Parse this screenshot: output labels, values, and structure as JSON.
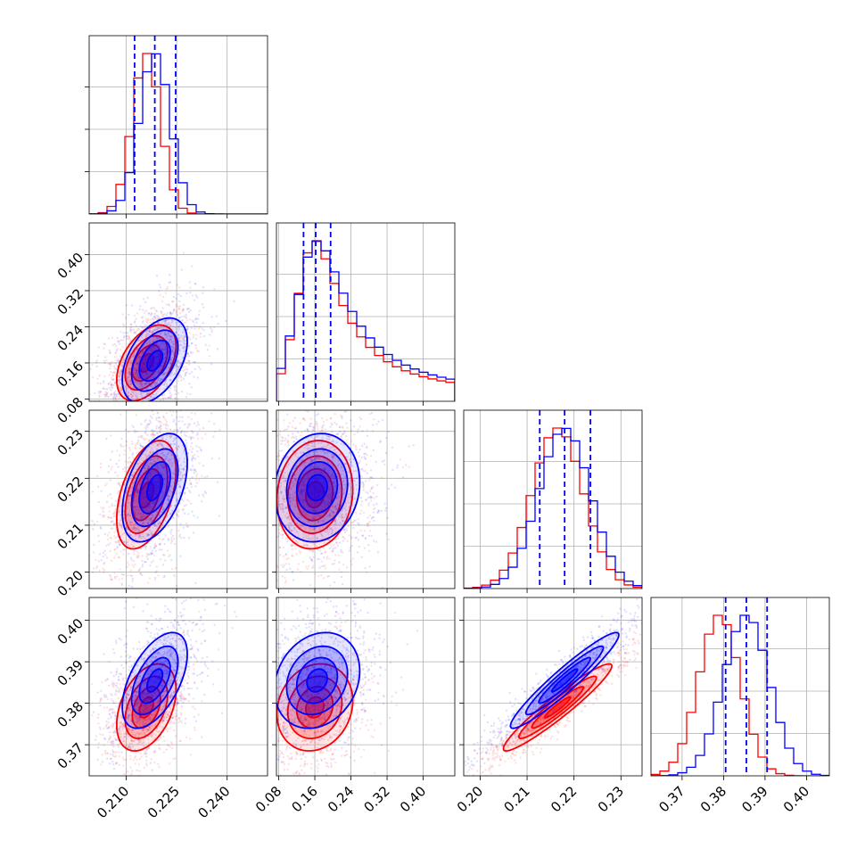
{
  "chart_data": {
    "type": "corner",
    "parameters": 4,
    "ranges": [
      [
        0.199,
        0.252
      ],
      [
        0.075,
        0.47
      ],
      [
        0.1965,
        0.2345
      ],
      [
        0.3625,
        0.4055
      ]
    ],
    "tick_labels": [
      [
        "0.210",
        "0.225",
        "0.240"
      ],
      [
        "0.08",
        "0.16",
        "0.24",
        "0.32",
        "0.40"
      ],
      [
        "0.20",
        "0.21",
        "0.22",
        "0.23"
      ],
      [
        "0.37",
        "0.38",
        "0.39",
        "0.40"
      ]
    ],
    "tick_values": [
      [
        0.21,
        0.225,
        0.24
      ],
      [
        0.08,
        0.16,
        0.24,
        0.32,
        0.4
      ],
      [
        0.2,
        0.21,
        0.22,
        0.23
      ],
      [
        0.37,
        0.38,
        0.39,
        0.4
      ]
    ],
    "grid": true,
    "legend": "none",
    "colors": {
      "blue": "#0000ff",
      "red": "#ff0000"
    },
    "series": [
      {
        "color": "#0000ff",
        "means": [
          0.2185,
          0.165,
          0.218,
          0.3855
        ],
        "sigmas": [
          0.0046,
          0.045,
          0.0055,
          0.0055
        ],
        "quantiles": [
          [
            0.2125,
            0.2185,
            0.2247
          ],
          [
            0.135,
            0.162,
            0.195
          ],
          [
            0.2127,
            0.218,
            0.2235
          ],
          [
            0.3805,
            0.3855,
            0.3905
          ]
        ],
        "correlations": [
          [
            1,
            0.45,
            0.45,
            0.55
          ],
          [
            0.45,
            1,
            0.1,
            0.2
          ],
          [
            0.45,
            0.1,
            1,
            0.95
          ],
          [
            0.55,
            0.2,
            0.95,
            1
          ]
        ]
      },
      {
        "color": "#ff0000",
        "means": [
          0.216,
          0.16,
          0.2165,
          0.379
        ],
        "sigmas": [
          0.0042,
          0.04,
          0.0055,
          0.005
        ],
        "quantiles": null,
        "correlations": [
          [
            1,
            0.45,
            0.45,
            0.4
          ],
          [
            0.45,
            1,
            0.1,
            0.15
          ],
          [
            0.45,
            0.1,
            1,
            0.95
          ],
          [
            0.4,
            0.15,
            0.95,
            1
          ]
        ]
      }
    ]
  }
}
